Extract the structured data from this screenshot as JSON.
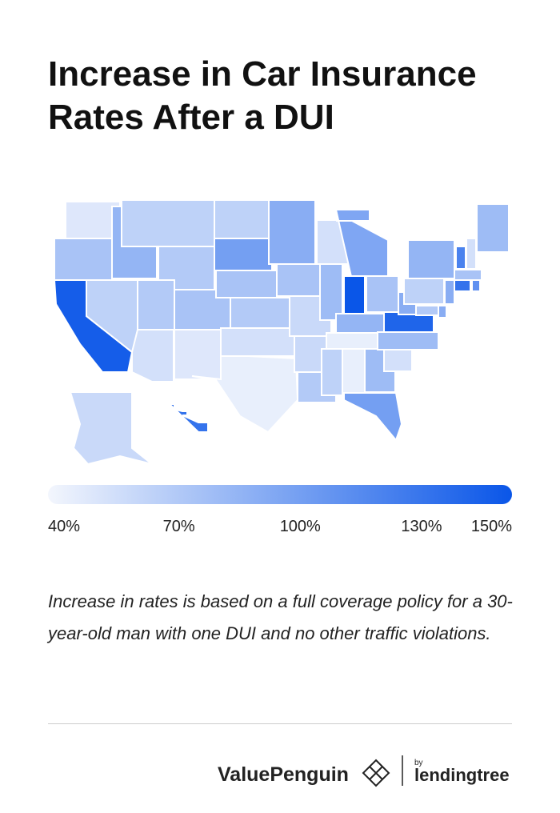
{
  "header": {
    "title": "Increase in Car Insurance Rates After a DUI"
  },
  "map": {
    "color_min": "#f3f6fd",
    "color_max": "#0a56e8",
    "min": 40,
    "max": 150,
    "values": [
      50,
      75,
      145,
      85,
      65,
      55,
      65,
      70,
      70,
      75,
      50,
      65,
      100,
      75,
      70,
      55,
      45,
      90,
      75,
      60,
      60,
      70,
      55,
      80,
      95,
      150,
      75,
      85,
      45,
      65,
      45,
      80,
      100,
      55,
      80,
      140,
      90,
      65,
      85,
      120,
      55,
      80,
      75,
      130,
      110,
      90,
      90,
      70,
      60,
      130
    ]
  },
  "legend": {
    "ticks": [
      {
        "value": 40,
        "label": "40%"
      },
      {
        "value": 70,
        "label": "70%"
      },
      {
        "value": 100,
        "label": "100%"
      },
      {
        "value": 130,
        "label": "130%"
      },
      {
        "value": 150,
        "label": "150%"
      }
    ]
  },
  "note": "Increase in rates is based on a full coverage policy for a 30-year-old man with one DUI and no other traffic violations.",
  "footer": {
    "brand": "ValuePenguin",
    "by": "by",
    "partner": "lendingtree"
  }
}
